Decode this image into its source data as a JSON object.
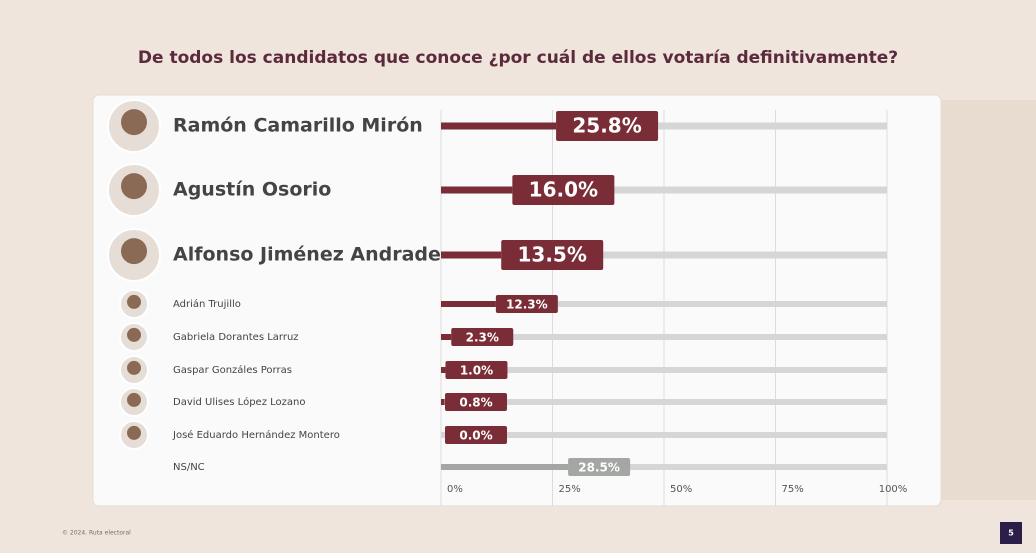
{
  "chart_data": {
    "type": "hbar",
    "title": "De todos los candidatos que conoce ¿por cuál de ellos votaría definitivamente?",
    "categories": [
      "Ramón Camarillo Mirón",
      "Agustín Osorio",
      "Alfonso Jiménez Andrade",
      "Adrián Trujillo",
      "Gabriela Dorantes Larruz",
      "Gaspar Gonzáles Porras",
      "David Ulises López Lozano",
      "José Eduardo Hernández Montero",
      "NS/NC"
    ],
    "values": [
      25.8,
      16.0,
      13.5,
      12.3,
      2.3,
      1.0,
      0.8,
      0.0,
      28.5
    ],
    "value_labels": [
      "25.8%",
      "16.0%",
      "13.5%",
      "12.3%",
      "2.3%",
      "1.0%",
      "0.8%",
      "0.0%",
      "28.5%"
    ],
    "colors": [
      "#7b2d37",
      "#7b2d37",
      "#7b2d37",
      "#7b2d37",
      "#7b2d37",
      "#7b2d37",
      "#7b2d37",
      "#7b2d37",
      "#a3a6a3"
    ],
    "xlim": [
      0,
      100
    ],
    "xticks": [
      {
        "value": 0,
        "label": "0%"
      },
      {
        "value": 25,
        "label": "25%"
      },
      {
        "value": 50,
        "label": "50%"
      },
      {
        "value": 75,
        "label": "75%"
      },
      {
        "value": 100,
        "label": "100%"
      }
    ],
    "grid": true
  },
  "footer": "© 2024. Ruta electoral",
  "page_number": "5"
}
